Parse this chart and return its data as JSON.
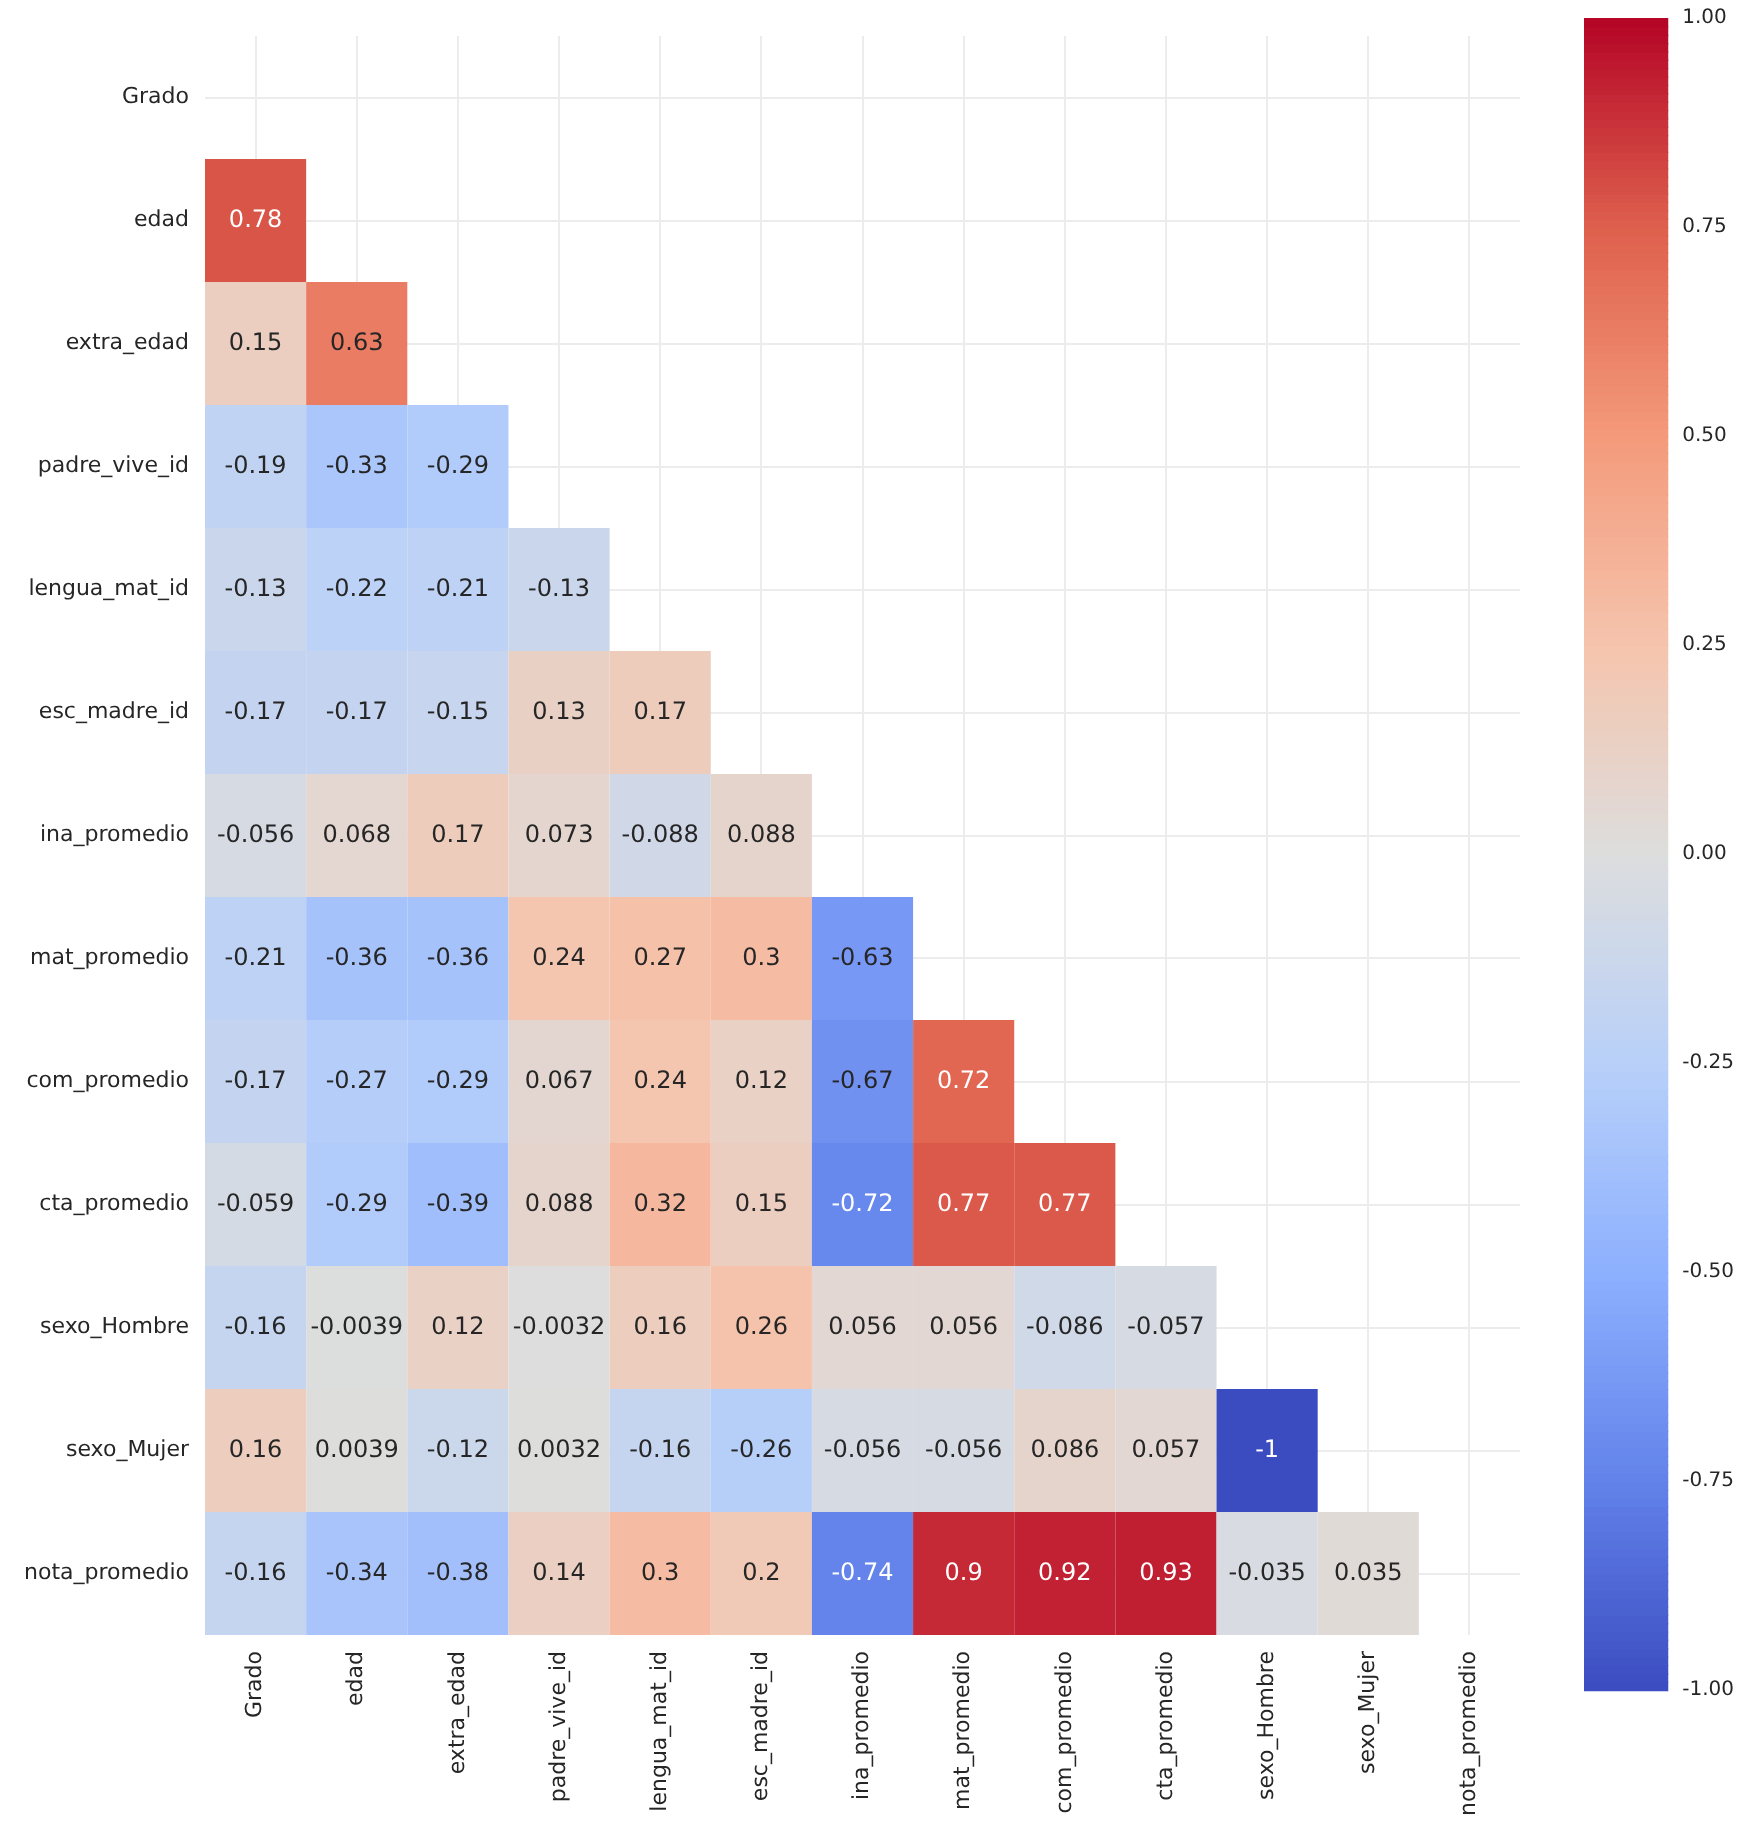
{
  "chart_data": {
    "type": "heatmap",
    "categories": [
      "Grado",
      "edad",
      "extra_edad",
      "padre_vive_id",
      "lengua_mat_id",
      "esc_madre_id",
      "ina_promedio",
      "mat_promedio",
      "com_promedio",
      "cta_promedio",
      "sexo_Hombre",
      "sexo_Mujer",
      "nota_promedio"
    ],
    "y_categories": [
      "Grado",
      "edad",
      "extra_edad",
      "padre_vive_id",
      "lengua_mat_id",
      "esc_madre_id",
      "ina_promedio",
      "mat_promedio",
      "com_promedio",
      "cta_promedio",
      "sexo_Hombre",
      "sexo_Mujer",
      "nota_promedio"
    ],
    "cells": [
      [
        null,
        null,
        null,
        null,
        null,
        null,
        null,
        null,
        null,
        null,
        null,
        null,
        null
      ],
      [
        0.78,
        null,
        null,
        null,
        null,
        null,
        null,
        null,
        null,
        null,
        null,
        null,
        null
      ],
      [
        0.15,
        0.63,
        null,
        null,
        null,
        null,
        null,
        null,
        null,
        null,
        null,
        null,
        null
      ],
      [
        -0.19,
        -0.33,
        -0.29,
        null,
        null,
        null,
        null,
        null,
        null,
        null,
        null,
        null,
        null
      ],
      [
        -0.13,
        -0.22,
        -0.21,
        -0.13,
        null,
        null,
        null,
        null,
        null,
        null,
        null,
        null,
        null
      ],
      [
        -0.17,
        -0.17,
        -0.15,
        0.13,
        0.17,
        null,
        null,
        null,
        null,
        null,
        null,
        null,
        null
      ],
      [
        -0.056,
        0.068,
        0.17,
        0.073,
        -0.088,
        0.088,
        null,
        null,
        null,
        null,
        null,
        null,
        null
      ],
      [
        -0.21,
        -0.36,
        -0.36,
        0.24,
        0.27,
        0.3,
        -0.63,
        null,
        null,
        null,
        null,
        null,
        null
      ],
      [
        -0.17,
        -0.27,
        -0.29,
        0.067,
        0.24,
        0.12,
        -0.67,
        0.72,
        null,
        null,
        null,
        null,
        null
      ],
      [
        -0.059,
        -0.29,
        -0.39,
        0.088,
        0.32,
        0.15,
        -0.72,
        0.77,
        0.77,
        null,
        null,
        null,
        null
      ],
      [
        -0.16,
        -0.0039,
        0.12,
        -0.0032,
        0.16,
        0.26,
        0.056,
        0.056,
        -0.086,
        -0.057,
        null,
        null,
        null
      ],
      [
        0.16,
        0.0039,
        -0.12,
        0.0032,
        -0.16,
        -0.26,
        -0.056,
        -0.056,
        0.086,
        0.057,
        -1,
        null,
        null
      ],
      [
        -0.16,
        -0.34,
        -0.38,
        0.14,
        0.3,
        0.2,
        -0.74,
        0.9,
        0.92,
        0.93,
        -0.035,
        0.035,
        null
      ]
    ],
    "clim": [
      -1,
      1
    ],
    "cticks": [
      {
        "value": -1,
        "label": "-1.00"
      },
      {
        "value": -0.75,
        "label": "-0.75"
      },
      {
        "value": -0.5,
        "label": "-0.50"
      },
      {
        "value": -0.25,
        "label": "-0.25"
      },
      {
        "value": 0,
        "label": "0.00"
      },
      {
        "value": 0.25,
        "label": "0.25"
      },
      {
        "value": 0.5,
        "label": "0.50"
      },
      {
        "value": 0.75,
        "label": "0.75"
      },
      {
        "value": 1,
        "label": "1.00"
      }
    ],
    "data_labels": true,
    "grid": true
  }
}
